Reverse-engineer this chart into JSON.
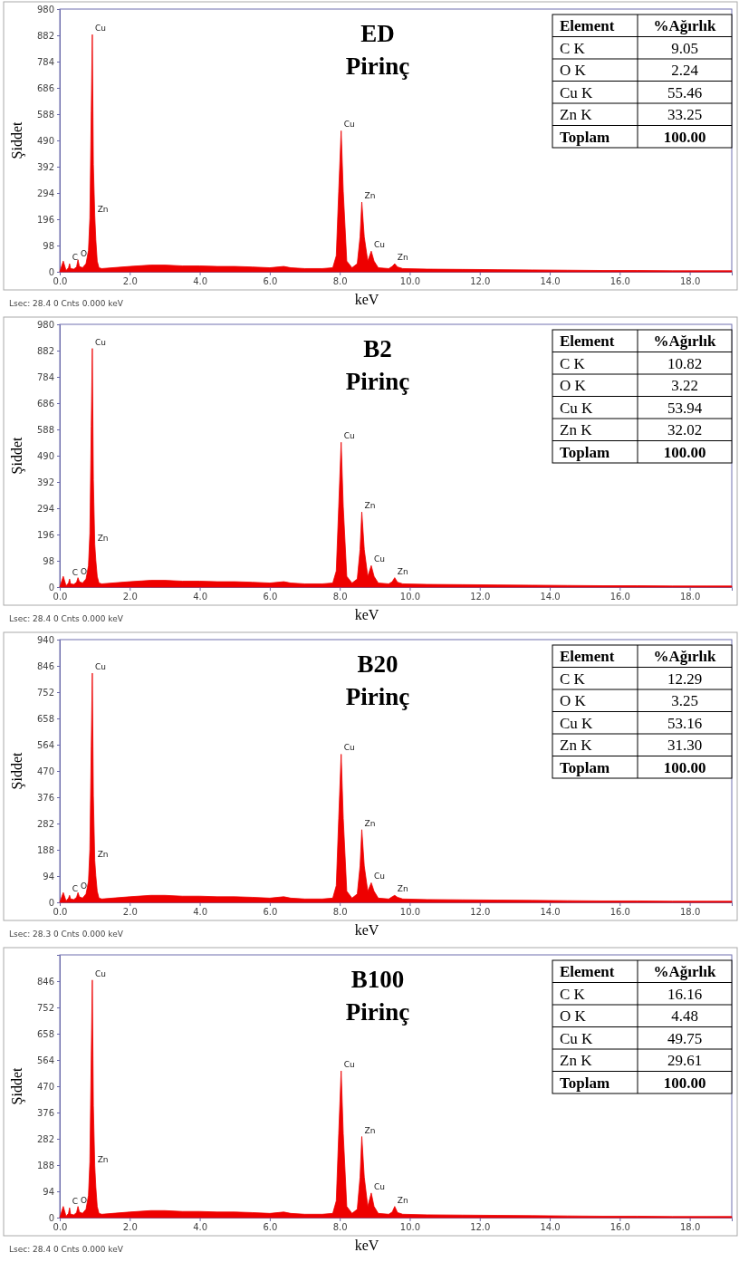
{
  "chart_data": [
    {
      "type": "area",
      "title": "ED",
      "subtitle": "Pirinç",
      "xlabel": "keV",
      "ylabel": "Şiddet",
      "x": [
        0.0,
        0.1,
        0.18,
        0.2,
        0.25,
        0.28,
        0.31,
        0.4,
        0.48,
        0.52,
        0.56,
        0.65,
        0.75,
        0.82,
        0.86,
        0.9,
        0.93,
        0.96,
        1.0,
        1.03,
        1.07,
        1.12,
        1.2,
        1.5,
        2.0,
        2.6,
        3.0,
        3.5,
        4.0,
        4.5,
        5.0,
        5.5,
        6.0,
        6.4,
        6.6,
        7.0,
        7.5,
        7.8,
        7.9,
        7.97,
        8.04,
        8.1,
        8.2,
        8.35,
        8.5,
        8.58,
        8.63,
        8.7,
        8.8,
        8.9,
        8.98,
        9.1,
        9.4,
        9.5,
        9.57,
        9.65,
        9.8,
        10.5,
        11.5,
        12.5,
        13.5,
        14.5,
        15.5,
        16.5,
        17.5,
        18.5,
        19.2
      ],
      "series": [
        {
          "color": "#ee0000",
          "values": [
            0,
            40,
            5,
            8,
            15,
            30,
            12,
            10,
            18,
            45,
            20,
            15,
            30,
            80,
            200,
            600,
            885,
            400,
            210,
            120,
            40,
            15,
            12,
            15,
            20,
            25,
            25,
            22,
            22,
            20,
            20,
            18,
            15,
            20,
            15,
            12,
            12,
            15,
            60,
            300,
            526,
            300,
            40,
            15,
            30,
            130,
            260,
            130,
            40,
            77,
            40,
            15,
            12,
            20,
            30,
            18,
            12,
            10,
            9,
            8,
            7,
            6,
            5,
            5,
            4,
            4,
            4
          ]
        }
      ],
      "xlim": [
        0,
        19.2
      ],
      "ylim": [
        0,
        980
      ],
      "xticks": [
        {
          "value": 0,
          "label": "0.0"
        },
        {
          "value": 2,
          "label": "2.0"
        },
        {
          "value": 4,
          "label": "4.0"
        },
        {
          "value": 6,
          "label": "6.0"
        },
        {
          "value": 8,
          "label": "8.0"
        },
        {
          "value": 10,
          "label": "10.0"
        },
        {
          "value": 12,
          "label": "12.0"
        },
        {
          "value": 14,
          "label": "14.0"
        },
        {
          "value": 16,
          "label": "16.0"
        },
        {
          "value": 18,
          "label": "18.0"
        }
      ],
      "yticks": [
        0,
        98,
        196,
        294,
        392,
        490,
        588,
        686,
        784,
        882,
        980
      ],
      "annotations": [
        {
          "text": "C",
          "x": 0.28,
          "y": 30
        },
        {
          "text": "O",
          "x": 0.52,
          "y": 45
        },
        {
          "text": "Cu",
          "x": 0.93,
          "y": 885
        },
        {
          "text": "Zn",
          "x": 1.0,
          "y": 210
        },
        {
          "text": "Cu",
          "x": 8.04,
          "y": 526
        },
        {
          "text": "Zn",
          "x": 8.63,
          "y": 260
        },
        {
          "text": "Cu",
          "x": 8.9,
          "y": 77
        },
        {
          "text": "Zn",
          "x": 9.57,
          "y": 30
        },
        "Element",
        "%Ağırlık",
        "C K",
        "9.05",
        "O K",
        "2.24",
        "Cu K",
        "55.46",
        "Zn K",
        "33.25",
        "Toplam",
        "100.00",
        "Lsec: 28.4 0 Cnts  0.000 keV"
      ]
    },
    {
      "type": "area",
      "title": "B2",
      "subtitle": "Pirinç",
      "xlabel": "keV",
      "ylabel": "Şiddet",
      "x": [
        0.0,
        0.1,
        0.18,
        0.2,
        0.25,
        0.28,
        0.31,
        0.4,
        0.48,
        0.52,
        0.56,
        0.65,
        0.75,
        0.82,
        0.86,
        0.9,
        0.93,
        0.96,
        1.0,
        1.03,
        1.07,
        1.12,
        1.2,
        1.5,
        2.0,
        2.6,
        3.0,
        3.5,
        4.0,
        4.5,
        5.0,
        5.5,
        6.0,
        6.4,
        6.6,
        7.0,
        7.5,
        7.8,
        7.9,
        7.97,
        8.04,
        8.1,
        8.2,
        8.35,
        8.5,
        8.58,
        8.63,
        8.7,
        8.8,
        8.9,
        8.98,
        9.1,
        9.4,
        9.5,
        9.57,
        9.65,
        9.8,
        10.5,
        11.5,
        12.5,
        13.5,
        14.5,
        15.5,
        16.5,
        17.5,
        18.5,
        19.2
      ],
      "series": [
        {
          "color": "#ee0000",
          "values": [
            0,
            40,
            5,
            8,
            15,
            30,
            12,
            10,
            18,
            35,
            20,
            15,
            30,
            80,
            200,
            600,
            890,
            400,
            160,
            100,
            40,
            15,
            12,
            15,
            20,
            25,
            25,
            22,
            22,
            20,
            20,
            18,
            15,
            20,
            15,
            12,
            12,
            15,
            60,
            300,
            540,
            300,
            40,
            15,
            30,
            140,
            280,
            140,
            40,
            80,
            40,
            15,
            12,
            20,
            35,
            18,
            12,
            10,
            9,
            8,
            7,
            6,
            5,
            5,
            4,
            4,
            4
          ]
        }
      ],
      "xlim": [
        0,
        19.2
      ],
      "ylim": [
        0,
        980
      ],
      "xticks": [
        {
          "value": 0,
          "label": "0.0"
        },
        {
          "value": 2,
          "label": "2.0"
        },
        {
          "value": 4,
          "label": "4.0"
        },
        {
          "value": 6,
          "label": "6.0"
        },
        {
          "value": 8,
          "label": "8.0"
        },
        {
          "value": 10,
          "label": "10.0"
        },
        {
          "value": 12,
          "label": "12.0"
        },
        {
          "value": 14,
          "label": "14.0"
        },
        {
          "value": 16,
          "label": "16.0"
        },
        {
          "value": 18,
          "label": "18.0"
        }
      ],
      "yticks": [
        0,
        98,
        196,
        294,
        392,
        490,
        588,
        686,
        784,
        882,
        980
      ],
      "annotations": [
        {
          "text": "C",
          "x": 0.28,
          "y": 30
        },
        {
          "text": "O",
          "x": 0.52,
          "y": 35
        },
        {
          "text": "Cu",
          "x": 0.93,
          "y": 890
        },
        {
          "text": "Zn",
          "x": 1.0,
          "y": 160
        },
        {
          "text": "Cu",
          "x": 8.04,
          "y": 540
        },
        {
          "text": "Zn",
          "x": 8.63,
          "y": 280
        },
        {
          "text": "Cu",
          "x": 8.9,
          "y": 80
        },
        {
          "text": "Zn",
          "x": 9.57,
          "y": 35
        },
        "Element",
        "%Ağırlık",
        "C K",
        "10.82",
        "O K",
        "3.22",
        "Cu K",
        "53.94",
        "Zn K",
        "32.02",
        "Toplam",
        "100.00",
        "Lsec: 28.4 0 Cnts  0.000 keV"
      ]
    },
    {
      "type": "area",
      "title": "B20",
      "subtitle": "Pirinç",
      "xlabel": "keV",
      "ylabel": "Şiddet",
      "x": [
        0.0,
        0.1,
        0.18,
        0.2,
        0.25,
        0.28,
        0.31,
        0.4,
        0.48,
        0.52,
        0.56,
        0.65,
        0.75,
        0.82,
        0.86,
        0.9,
        0.93,
        0.96,
        1.0,
        1.03,
        1.07,
        1.12,
        1.2,
        1.5,
        2.0,
        2.6,
        3.0,
        3.5,
        4.0,
        4.5,
        5.0,
        5.5,
        6.0,
        6.4,
        6.6,
        7.0,
        7.5,
        7.8,
        7.9,
        7.97,
        8.04,
        8.1,
        8.2,
        8.35,
        8.5,
        8.58,
        8.63,
        8.7,
        8.8,
        8.9,
        8.98,
        9.1,
        9.4,
        9.5,
        9.57,
        9.65,
        9.8,
        10.5,
        11.5,
        12.5,
        13.5,
        14.5,
        15.5,
        16.5,
        17.5,
        18.5,
        19.2
      ],
      "series": [
        {
          "color": "#ee0000",
          "values": [
            0,
            35,
            5,
            8,
            15,
            25,
            12,
            10,
            18,
            35,
            20,
            15,
            30,
            75,
            190,
            560,
            820,
            380,
            150,
            95,
            40,
            15,
            12,
            15,
            20,
            25,
            25,
            22,
            22,
            20,
            20,
            18,
            15,
            20,
            15,
            12,
            12,
            15,
            60,
            300,
            530,
            300,
            40,
            15,
            30,
            130,
            260,
            130,
            40,
            70,
            40,
            15,
            12,
            20,
            25,
            18,
            12,
            10,
            9,
            8,
            7,
            6,
            5,
            5,
            4,
            4,
            4
          ]
        }
      ],
      "xlim": [
        0,
        19.2
      ],
      "ylim": [
        0,
        940
      ],
      "xticks": [
        {
          "value": 0,
          "label": "0.0"
        },
        {
          "value": 2,
          "label": "2.0"
        },
        {
          "value": 4,
          "label": "4.0"
        },
        {
          "value": 6,
          "label": "6.0"
        },
        {
          "value": 8,
          "label": "8.0"
        },
        {
          "value": 10,
          "label": "10.0"
        },
        {
          "value": 12,
          "label": "12.0"
        },
        {
          "value": 14,
          "label": "14.0"
        },
        {
          "value": 16,
          "label": "16.0"
        },
        {
          "value": 18,
          "label": "18.0"
        }
      ],
      "yticks": [
        0,
        94,
        188,
        282,
        376,
        470,
        564,
        658,
        752,
        846,
        940
      ],
      "annotations": [
        {
          "text": "C",
          "x": 0.28,
          "y": 25
        },
        {
          "text": "O",
          "x": 0.52,
          "y": 35
        },
        {
          "text": "Cu",
          "x": 0.93,
          "y": 820
        },
        {
          "text": "Zn",
          "x": 1.0,
          "y": 150
        },
        {
          "text": "Cu",
          "x": 8.04,
          "y": 530
        },
        {
          "text": "Zn",
          "x": 8.63,
          "y": 260
        },
        {
          "text": "Cu",
          "x": 8.9,
          "y": 70
        },
        {
          "text": "Zn",
          "x": 9.57,
          "y": 25
        },
        "Element",
        "%Ağırlık",
        "C K",
        "12.29",
        "O K",
        "3.25",
        "Cu K",
        "53.16",
        "Zn K",
        "31.30",
        "Toplam",
        "100.00",
        "Lsec: 28.3 0 Cnts  0.000 keV"
      ]
    },
    {
      "type": "area",
      "title": "B100",
      "subtitle": "Pirinç",
      "xlabel": "keV",
      "ylabel": "Şiddet",
      "x": [
        0.0,
        0.1,
        0.18,
        0.2,
        0.25,
        0.28,
        0.31,
        0.4,
        0.48,
        0.52,
        0.56,
        0.65,
        0.75,
        0.82,
        0.86,
        0.9,
        0.93,
        0.96,
        1.0,
        1.03,
        1.07,
        1.12,
        1.2,
        1.5,
        2.0,
        2.6,
        3.0,
        3.5,
        4.0,
        4.5,
        5.0,
        5.5,
        6.0,
        6.4,
        6.6,
        7.0,
        7.5,
        7.8,
        7.9,
        7.97,
        8.04,
        8.1,
        8.2,
        8.35,
        8.5,
        8.58,
        8.63,
        8.7,
        8.8,
        8.9,
        8.98,
        9.1,
        9.4,
        9.5,
        9.57,
        9.65,
        9.8,
        10.5,
        11.5,
        12.5,
        13.5,
        14.5,
        15.5,
        16.5,
        17.5,
        18.5,
        19.2
      ],
      "series": [
        {
          "color": "#ee0000",
          "values": [
            0,
            40,
            5,
            8,
            15,
            35,
            12,
            10,
            18,
            40,
            20,
            15,
            30,
            80,
            200,
            580,
            850,
            400,
            185,
            110,
            40,
            15,
            12,
            15,
            20,
            25,
            25,
            22,
            22,
            20,
            20,
            18,
            15,
            20,
            15,
            12,
            12,
            15,
            60,
            300,
            525,
            300,
            40,
            15,
            30,
            145,
            290,
            145,
            40,
            88,
            40,
            15,
            12,
            20,
            40,
            18,
            12,
            10,
            9,
            8,
            7,
            6,
            5,
            5,
            4,
            4,
            4
          ]
        }
      ],
      "xlim": [
        0,
        19.2
      ],
      "ylim": [
        0,
        940
      ],
      "xticks": [
        {
          "value": 0,
          "label": "0.0"
        },
        {
          "value": 2,
          "label": "2.0"
        },
        {
          "value": 4,
          "label": "4.0"
        },
        {
          "value": 6,
          "label": "6.0"
        },
        {
          "value": 8,
          "label": "8.0"
        },
        {
          "value": 10,
          "label": "10.0"
        },
        {
          "value": 12,
          "label": "12.0"
        },
        {
          "value": 14,
          "label": "14.0"
        },
        {
          "value": 16,
          "label": "16.0"
        },
        {
          "value": 18,
          "label": "18.0"
        }
      ],
      "yticks": [
        0,
        94,
        188,
        282,
        376,
        470,
        564,
        658,
        752,
        846
      ],
      "annotations": [
        {
          "text": "C",
          "x": 0.28,
          "y": 35
        },
        {
          "text": "O",
          "x": 0.52,
          "y": 40
        },
        {
          "text": "Cu",
          "x": 0.93,
          "y": 850
        },
        {
          "text": "Zn",
          "x": 1.0,
          "y": 185
        },
        {
          "text": "Cu",
          "x": 8.04,
          "y": 525
        },
        {
          "text": "Zn",
          "x": 8.63,
          "y": 290
        },
        {
          "text": "Cu",
          "x": 8.9,
          "y": 88
        },
        {
          "text": "Zn",
          "x": 9.57,
          "y": 40
        },
        "Element",
        "%Ağırlık",
        "C K",
        "16.16",
        "O K",
        "4.48",
        "Cu K",
        "49.75",
        "Zn K",
        "29.61",
        "Toplam",
        "100.00",
        "Lsec: 28.4 0 Cnts  0.000 keV"
      ]
    }
  ]
}
